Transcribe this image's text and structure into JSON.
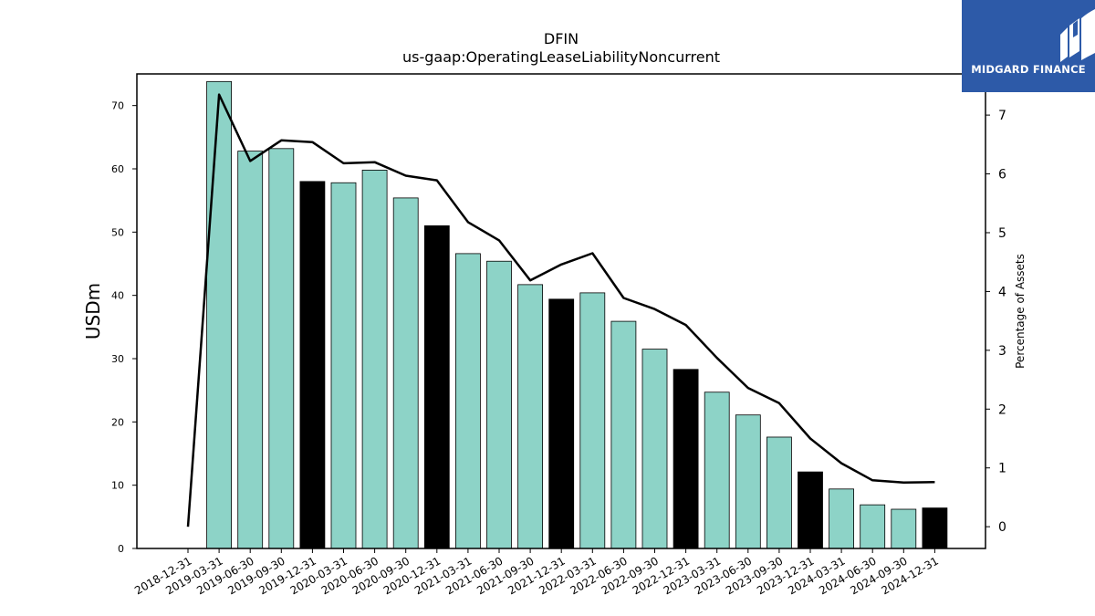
{
  "chart_data": {
    "type": "bar",
    "title": "DFIN",
    "subtitle": "us-gaap:OperatingLeaseLiabilityNoncurrent",
    "ylabel": "USDm",
    "y2label": "Percentage of Assets",
    "ylim": [
      0,
      75
    ],
    "y2lim": [
      -0.37,
      7.7
    ],
    "yticks": [
      0,
      10,
      20,
      30,
      40,
      50,
      60,
      70
    ],
    "y2ticks": [
      0,
      1,
      2,
      3,
      4,
      5,
      6,
      7
    ],
    "categories": [
      "2018-12-31",
      "2019-03-31",
      "2019-06-30",
      "2019-09-30",
      "2019-12-31",
      "2020-03-31",
      "2020-06-30",
      "2020-09-30",
      "2020-12-31",
      "2021-03-31",
      "2021-06-30",
      "2021-09-30",
      "2021-12-31",
      "2022-03-31",
      "2022-06-30",
      "2022-09-30",
      "2022-12-31",
      "2023-03-31",
      "2023-06-30",
      "2023-09-30",
      "2023-12-31",
      "2024-03-31",
      "2024-06-30",
      "2024-09-30",
      "2024-12-31"
    ],
    "series": [
      {
        "type": "bar",
        "values": [
          null,
          73.8,
          62.8,
          63.2,
          58.0,
          57.8,
          59.8,
          55.4,
          51.0,
          46.6,
          45.4,
          41.7,
          39.4,
          40.4,
          35.9,
          31.5,
          28.3,
          24.7,
          21.1,
          17.6,
          12.1,
          9.4,
          6.9,
          6.2,
          6.4
        ],
        "colors": [
          null,
          "#8dd3c7",
          "#8dd3c7",
          "#8dd3c7",
          "#000000",
          "#8dd3c7",
          "#8dd3c7",
          "#8dd3c7",
          "#000000",
          "#8dd3c7",
          "#8dd3c7",
          "#8dd3c7",
          "#000000",
          "#8dd3c7",
          "#8dd3c7",
          "#8dd3c7",
          "#000000",
          "#8dd3c7",
          "#8dd3c7",
          "#8dd3c7",
          "#000000",
          "#8dd3c7",
          "#8dd3c7",
          "#8dd3c7",
          "#000000"
        ]
      },
      {
        "type": "line",
        "axis": "right",
        "values": [
          0.0,
          7.35,
          6.22,
          6.57,
          6.54,
          6.18,
          6.2,
          5.97,
          5.89,
          5.18,
          4.87,
          4.19,
          4.46,
          4.65,
          3.89,
          3.7,
          3.43,
          2.87,
          2.36,
          2.1,
          1.5,
          1.08,
          0.79,
          0.75,
          0.76
        ],
        "color": "#000000"
      }
    ],
    "grid": false,
    "legend": "none"
  },
  "logo": {
    "text": "MIDGARD FINANCE",
    "background": "#2d5aa8"
  }
}
